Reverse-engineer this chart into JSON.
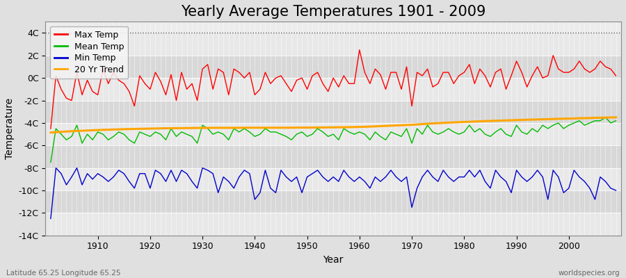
{
  "title": "Yearly Average Temperatures 1901 - 2009",
  "xlabel": "Year",
  "ylabel": "Temperature",
  "subtitle_left": "Latitude 65.25 Longitude 65.25",
  "subtitle_right": "worldspecies.org",
  "years": [
    1901,
    1902,
    1903,
    1904,
    1905,
    1906,
    1907,
    1908,
    1909,
    1910,
    1911,
    1912,
    1913,
    1914,
    1915,
    1916,
    1917,
    1918,
    1919,
    1920,
    1921,
    1922,
    1923,
    1924,
    1925,
    1926,
    1927,
    1928,
    1929,
    1930,
    1931,
    1932,
    1933,
    1934,
    1935,
    1936,
    1937,
    1938,
    1939,
    1940,
    1941,
    1942,
    1943,
    1944,
    1945,
    1946,
    1947,
    1948,
    1949,
    1950,
    1951,
    1952,
    1953,
    1954,
    1955,
    1956,
    1957,
    1958,
    1959,
    1960,
    1961,
    1962,
    1963,
    1964,
    1965,
    1966,
    1967,
    1968,
    1969,
    1970,
    1971,
    1972,
    1973,
    1974,
    1975,
    1976,
    1977,
    1978,
    1979,
    1980,
    1981,
    1982,
    1983,
    1984,
    1985,
    1986,
    1987,
    1988,
    1989,
    1990,
    1991,
    1992,
    1993,
    1994,
    1995,
    1996,
    1997,
    1998,
    1999,
    2000,
    2001,
    2002,
    2003,
    2004,
    2005,
    2006,
    2007,
    2008,
    2009
  ],
  "max_temp": [
    -4.5,
    0.2,
    -1.0,
    -1.8,
    -2.0,
    0.5,
    -1.5,
    -0.2,
    -1.2,
    -1.5,
    0.8,
    -0.5,
    0.5,
    -0.2,
    -0.5,
    -1.2,
    -2.5,
    0.2,
    -0.5,
    -1.0,
    0.5,
    -0.3,
    -1.5,
    0.3,
    -2.0,
    0.5,
    -1.0,
    -0.5,
    -2.0,
    0.8,
    1.2,
    -1.0,
    0.8,
    0.5,
    -1.5,
    0.8,
    0.5,
    0.0,
    0.5,
    -1.5,
    -1.0,
    0.5,
    -0.5,
    0.0,
    0.2,
    -0.5,
    -1.2,
    -0.2,
    0.0,
    -1.0,
    0.2,
    0.5,
    -0.5,
    -1.2,
    0.0,
    -0.8,
    0.2,
    -0.5,
    -0.5,
    2.5,
    0.5,
    -0.5,
    0.8,
    0.3,
    -1.0,
    0.5,
    0.5,
    -1.0,
    1.0,
    -2.5,
    0.5,
    0.2,
    0.8,
    -0.8,
    -0.5,
    0.5,
    0.5,
    -0.5,
    0.2,
    0.5,
    1.2,
    -0.5,
    0.8,
    0.2,
    -0.8,
    0.5,
    0.8,
    -1.0,
    0.2,
    1.5,
    0.5,
    -0.8,
    0.2,
    1.0,
    0.0,
    0.2,
    2.0,
    0.8,
    0.5,
    0.5,
    0.8,
    1.5,
    0.8,
    0.5,
    0.8,
    1.5,
    1.0,
    0.8,
    0.2
  ],
  "mean_temp": [
    -7.5,
    -4.5,
    -5.0,
    -5.5,
    -5.2,
    -4.2,
    -5.8,
    -5.0,
    -5.5,
    -4.8,
    -5.0,
    -5.5,
    -5.2,
    -4.8,
    -5.0,
    -5.5,
    -5.8,
    -4.8,
    -5.0,
    -5.2,
    -4.8,
    -5.0,
    -5.5,
    -4.5,
    -5.2,
    -4.8,
    -5.0,
    -5.2,
    -5.8,
    -4.2,
    -4.5,
    -5.0,
    -4.8,
    -5.0,
    -5.5,
    -4.5,
    -4.8,
    -4.5,
    -4.8,
    -5.2,
    -5.0,
    -4.5,
    -4.8,
    -4.8,
    -5.0,
    -5.2,
    -5.5,
    -5.0,
    -4.8,
    -5.2,
    -5.0,
    -4.5,
    -4.8,
    -5.2,
    -5.0,
    -5.5,
    -4.5,
    -4.8,
    -5.0,
    -4.8,
    -5.0,
    -5.5,
    -4.8,
    -5.2,
    -5.5,
    -4.8,
    -5.0,
    -5.2,
    -4.5,
    -5.8,
    -4.5,
    -5.0,
    -4.2,
    -4.8,
    -5.0,
    -4.8,
    -4.5,
    -4.8,
    -5.0,
    -4.8,
    -4.2,
    -4.8,
    -4.5,
    -5.0,
    -5.2,
    -4.8,
    -4.5,
    -5.0,
    -5.2,
    -4.2,
    -4.8,
    -5.0,
    -4.5,
    -4.8,
    -4.2,
    -4.5,
    -4.2,
    -4.0,
    -4.5,
    -4.2,
    -4.0,
    -3.8,
    -4.2,
    -4.0,
    -3.8,
    -3.8,
    -3.5,
    -4.0,
    -3.8
  ],
  "min_temp": [
    -12.5,
    -8.0,
    -8.5,
    -9.5,
    -8.8,
    -8.0,
    -9.5,
    -8.5,
    -9.0,
    -8.5,
    -8.8,
    -9.2,
    -8.8,
    -8.2,
    -8.5,
    -9.2,
    -9.8,
    -8.5,
    -8.5,
    -9.8,
    -8.2,
    -8.5,
    -9.2,
    -8.2,
    -9.2,
    -8.2,
    -8.5,
    -9.2,
    -9.8,
    -8.0,
    -8.2,
    -8.5,
    -10.2,
    -8.8,
    -9.2,
    -9.8,
    -8.8,
    -8.2,
    -8.5,
    -10.8,
    -10.2,
    -8.2,
    -9.8,
    -10.2,
    -8.2,
    -8.8,
    -9.2,
    -8.8,
    -10.2,
    -8.8,
    -8.5,
    -8.2,
    -8.8,
    -9.2,
    -8.8,
    -9.2,
    -8.2,
    -8.8,
    -9.2,
    -8.8,
    -9.2,
    -9.8,
    -8.8,
    -9.2,
    -8.8,
    -8.2,
    -8.8,
    -9.2,
    -8.8,
    -11.5,
    -9.8,
    -8.8,
    -8.2,
    -8.8,
    -9.2,
    -8.2,
    -8.8,
    -9.2,
    -8.8,
    -8.8,
    -8.2,
    -8.8,
    -8.2,
    -9.2,
    -9.8,
    -8.2,
    -8.8,
    -9.2,
    -10.2,
    -8.2,
    -8.8,
    -9.2,
    -8.8,
    -8.2,
    -8.8,
    -10.8,
    -8.2,
    -8.8,
    -10.2,
    -9.8,
    -8.2,
    -8.8,
    -9.2,
    -9.8,
    -10.8,
    -8.8,
    -9.2,
    -9.8,
    -10.0
  ],
  "trend_20yr": [
    -4.85,
    -4.82,
    -4.79,
    -4.76,
    -4.73,
    -4.71,
    -4.69,
    -4.67,
    -4.65,
    -4.63,
    -4.61,
    -4.6,
    -4.58,
    -4.57,
    -4.55,
    -4.54,
    -4.53,
    -4.52,
    -4.51,
    -4.5,
    -4.49,
    -4.48,
    -4.47,
    -4.47,
    -4.46,
    -4.46,
    -4.45,
    -4.45,
    -4.44,
    -4.44,
    -4.44,
    -4.43,
    -4.43,
    -4.43,
    -4.43,
    -4.43,
    -4.43,
    -4.42,
    -4.42,
    -4.42,
    -4.42,
    -4.42,
    -4.42,
    -4.42,
    -4.42,
    -4.42,
    -4.42,
    -4.41,
    -4.41,
    -4.41,
    -4.41,
    -4.4,
    -4.4,
    -4.39,
    -4.39,
    -4.38,
    -4.38,
    -4.37,
    -4.36,
    -4.35,
    -4.34,
    -4.32,
    -4.3,
    -4.28,
    -4.26,
    -4.24,
    -4.22,
    -4.2,
    -4.18,
    -4.16,
    -4.13,
    -4.1,
    -4.07,
    -4.04,
    -4.02,
    -3.99,
    -3.97,
    -3.95,
    -3.93,
    -3.91,
    -3.89,
    -3.87,
    -3.85,
    -3.83,
    -3.82,
    -3.8,
    -3.79,
    -3.77,
    -3.76,
    -3.74,
    -3.73,
    -3.71,
    -3.7,
    -3.69,
    -3.67,
    -3.66,
    -3.65,
    -3.63,
    -3.62,
    -3.61,
    -3.6,
    -3.58,
    -3.57,
    -3.56,
    -3.54,
    -3.53,
    -3.52,
    -3.51,
    -3.5
  ],
  "max_color": "#ff0000",
  "mean_color": "#00bb00",
  "min_color": "#0000cc",
  "trend_color": "#ffa500",
  "bg_color": "#e0e0e0",
  "plot_bg_color": "#ececec",
  "band_color_light": "#e8e8e8",
  "band_color_dark": "#d8d8d8",
  "grid_color": "#ffffff",
  "ylim": [
    -14,
    5
  ],
  "yticks": [
    -14,
    -12,
    -10,
    -8,
    -6,
    -4,
    -2,
    0,
    2,
    4
  ],
  "ytick_labels": [
    "-14C",
    "-12C",
    "-10C",
    "-8C",
    "-6C",
    "-4C",
    "-2C",
    "0C",
    "2C",
    "4C"
  ],
  "hline_y": 4.0,
  "title_fontsize": 15,
  "axis_label_fontsize": 10,
  "tick_fontsize": 9,
  "legend_fontsize": 9
}
